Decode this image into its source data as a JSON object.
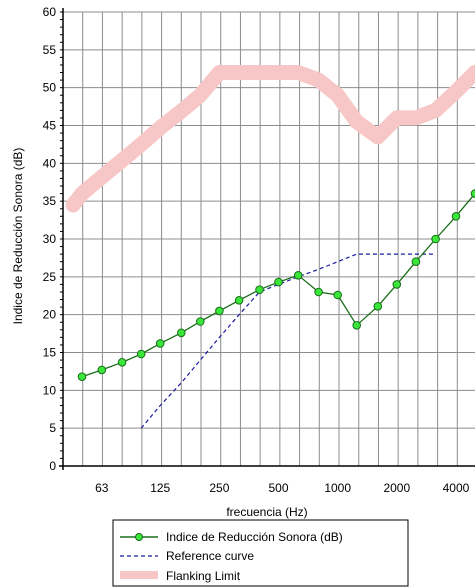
{
  "chart_data": {
    "type": "line",
    "xlabel": "frecuencia (Hz)",
    "ylabel": "Indice de Reducción Sonora (dB)",
    "x_scale": "log",
    "xlim": [
      40,
      5000
    ],
    "ylim": [
      0,
      60
    ],
    "grid": true,
    "y_ticks": [
      0,
      5,
      10,
      15,
      20,
      25,
      30,
      35,
      40,
      45,
      50,
      55,
      60
    ],
    "x_ticks": [
      63,
      125,
      250,
      500,
      1000,
      2000,
      4000
    ],
    "x_tick_labels": [
      "63",
      "125",
      "250",
      "500",
      "1000",
      "2000",
      "4000"
    ],
    "legend_position": "bottom",
    "series": [
      {
        "name": "Indice de Reducción Sonora (dB)",
        "style": "line-with-markers",
        "color": "#1a6e1a",
        "marker_color": "#39e639",
        "x": [
          50,
          63,
          80,
          100,
          125,
          160,
          200,
          250,
          315,
          400,
          500,
          630,
          800,
          1000,
          1250,
          1600,
          2000,
          2500,
          3150,
          4000,
          5000
        ],
        "y": [
          11.8,
          12.7,
          13.7,
          14.8,
          16.2,
          17.6,
          19.1,
          20.5,
          21.9,
          23.3,
          24.3,
          25.2,
          23.0,
          22.6,
          18.6,
          21.1,
          24.0,
          27.0,
          30.0,
          33.0,
          36.0
        ]
      },
      {
        "name": "Reference curve",
        "style": "dashed",
        "color": "#1a1aa0",
        "x": [
          100,
          125,
          160,
          200,
          250,
          315,
          400,
          500,
          630,
          800,
          1000,
          1250,
          1600,
          2000,
          2500,
          3150
        ],
        "y": [
          5,
          8,
          11,
          14,
          17,
          20,
          23,
          24,
          25,
          26,
          27,
          28,
          28,
          28,
          28,
          28
        ]
      },
      {
        "name": "Flanking Limit",
        "style": "thick-band",
        "color": "#f7c6c6",
        "x": [
          45,
          50,
          63,
          80,
          100,
          125,
          160,
          200,
          250,
          315,
          400,
          500,
          630,
          800,
          1000,
          1250,
          1600,
          2000,
          2500,
          3150,
          4000,
          5000
        ],
        "y": [
          34.5,
          36,
          38.2,
          40.4,
          42.5,
          44.7,
          46.9,
          49,
          52,
          52,
          52,
          52,
          52,
          51,
          49,
          45.5,
          43.5,
          46,
          46,
          47,
          49.5,
          52
        ]
      }
    ]
  }
}
